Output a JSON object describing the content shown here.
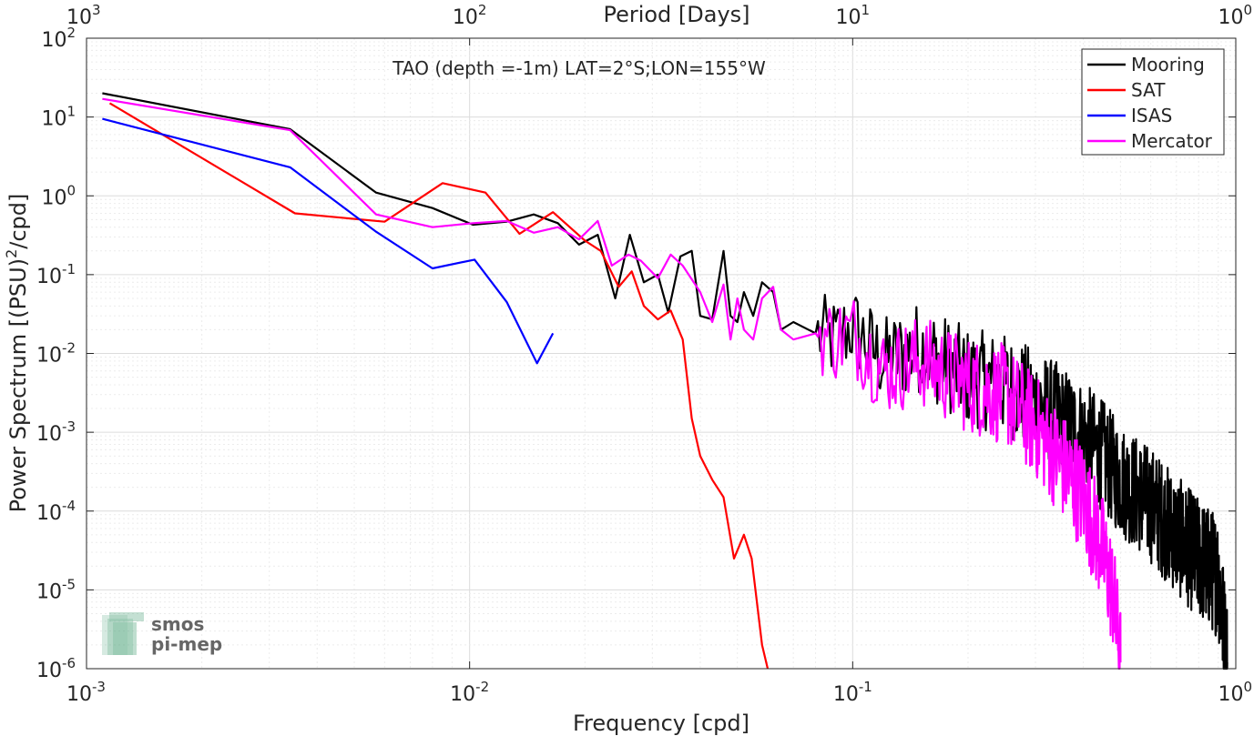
{
  "chart_data": {
    "type": "line",
    "title": "TAO (depth =-1m) LAT=2°S;LON=155°W",
    "xlabel": "Frequency [cpd]",
    "ylabel_main": "Power Spectrum [(PSU)",
    "ylabel_sup": "2",
    "ylabel_tail": "/cpd]",
    "top_xlabel": "Period [Days]",
    "xscale": "log",
    "yscale": "log",
    "xlim": [
      0.001,
      1
    ],
    "ylim": [
      1e-06,
      100
    ],
    "grid": true,
    "legend_position": "top-right",
    "x_ticks": [
      {
        "value": 0.001,
        "base": "10",
        "exp": "-3"
      },
      {
        "value": 0.01,
        "base": "10",
        "exp": "-2"
      },
      {
        "value": 0.1,
        "base": "10",
        "exp": "-1"
      },
      {
        "value": 1,
        "base": "10",
        "exp": "0"
      }
    ],
    "y_ticks": [
      {
        "value": 1e-06,
        "base": "10",
        "exp": "-6"
      },
      {
        "value": 1e-05,
        "base": "10",
        "exp": "-5"
      },
      {
        "value": 0.0001,
        "base": "10",
        "exp": "-4"
      },
      {
        "value": 0.001,
        "base": "10",
        "exp": "-3"
      },
      {
        "value": 0.01,
        "base": "10",
        "exp": "-2"
      },
      {
        "value": 0.1,
        "base": "10",
        "exp": "-1"
      },
      {
        "value": 1,
        "base": "10",
        "exp": "0"
      },
      {
        "value": 10,
        "base": "10",
        "exp": "1"
      },
      {
        "value": 100,
        "base": "10",
        "exp": "2"
      }
    ],
    "top_ticks": [
      {
        "value": 0.001,
        "base": "10",
        "exp": "3"
      },
      {
        "value": 0.01,
        "base": "10",
        "exp": "2"
      },
      {
        "value": 0.1,
        "base": "10",
        "exp": "1"
      },
      {
        "value": 1,
        "base": "10",
        "exp": "0"
      }
    ],
    "series": [
      {
        "name": "Mooring",
        "color": "#000000",
        "mode": "noisy",
        "anchors": [
          [
            0.0011,
            20
          ],
          [
            0.0034,
            7
          ],
          [
            0.0057,
            1.1
          ],
          [
            0.008,
            0.7
          ],
          [
            0.0102,
            0.43
          ],
          [
            0.0125,
            0.47
          ],
          [
            0.0147,
            0.58
          ],
          [
            0.017,
            0.45
          ],
          [
            0.0193,
            0.24
          ],
          [
            0.0216,
            0.32
          ],
          [
            0.024,
            0.05
          ],
          [
            0.0262,
            0.32
          ],
          [
            0.0285,
            0.08
          ],
          [
            0.031,
            0.1
          ],
          [
            0.033,
            0.033
          ],
          [
            0.0355,
            0.17
          ],
          [
            0.038,
            0.2
          ],
          [
            0.04,
            0.03
          ],
          [
            0.043,
            0.027
          ],
          [
            0.046,
            0.2
          ],
          [
            0.048,
            0.03
          ],
          [
            0.05,
            0.025
          ],
          [
            0.052,
            0.06
          ],
          [
            0.055,
            0.03
          ],
          [
            0.058,
            0.08
          ],
          [
            0.062,
            0.06
          ],
          [
            0.065,
            0.02
          ],
          [
            0.07,
            0.025
          ],
          [
            0.08,
            0.018
          ],
          [
            0.09,
            0.015
          ],
          [
            0.1,
            0.022
          ],
          [
            0.12,
            0.008
          ],
          [
            0.15,
            0.012
          ],
          [
            0.2,
            0.005
          ],
          [
            0.25,
            0.004
          ],
          [
            0.3,
            0.0025
          ],
          [
            0.35,
            0.0015
          ],
          [
            0.4,
            0.0009
          ],
          [
            0.45,
            0.0005
          ],
          [
            0.5,
            0.00025
          ],
          [
            0.6,
            0.00012
          ],
          [
            0.7,
            5e-05
          ],
          [
            0.8,
            2.5e-05
          ],
          [
            0.9,
            1.5e-05
          ],
          [
            0.95,
            1.2e-06
          ]
        ]
      },
      {
        "name": "SAT",
        "color": "#ff0000",
        "mode": "smooth",
        "anchors": [
          [
            0.00115,
            15
          ],
          [
            0.0035,
            0.6
          ],
          [
            0.006,
            0.47
          ],
          [
            0.0085,
            1.45
          ],
          [
            0.011,
            1.1
          ],
          [
            0.0135,
            0.33
          ],
          [
            0.0165,
            0.62
          ],
          [
            0.02,
            0.27
          ],
          [
            0.022,
            0.2
          ],
          [
            0.0245,
            0.07
          ],
          [
            0.0265,
            0.11
          ],
          [
            0.0285,
            0.04
          ],
          [
            0.031,
            0.027
          ],
          [
            0.0335,
            0.035
          ],
          [
            0.036,
            0.015
          ],
          [
            0.038,
            0.0015
          ],
          [
            0.04,
            0.0005
          ],
          [
            0.043,
            0.00025
          ],
          [
            0.046,
            0.00015
          ],
          [
            0.049,
            2.5e-05
          ],
          [
            0.052,
            5e-05
          ],
          [
            0.0545,
            2.5e-05
          ],
          [
            0.058,
            2e-06
          ],
          [
            0.06,
            1e-06
          ]
        ]
      },
      {
        "name": "ISAS",
        "color": "#0000ff",
        "mode": "smooth",
        "anchors": [
          [
            0.0011,
            9.5
          ],
          [
            0.0034,
            2.3
          ],
          [
            0.0057,
            0.35
          ],
          [
            0.008,
            0.12
          ],
          [
            0.0103,
            0.155
          ],
          [
            0.0125,
            0.045
          ],
          [
            0.015,
            0.0075
          ],
          [
            0.0165,
            0.018
          ]
        ]
      },
      {
        "name": "Mercator",
        "color": "#ff00ff",
        "mode": "noisy",
        "anchors": [
          [
            0.0011,
            17
          ],
          [
            0.0034,
            6.8
          ],
          [
            0.0057,
            0.58
          ],
          [
            0.008,
            0.4
          ],
          [
            0.0102,
            0.45
          ],
          [
            0.0125,
            0.48
          ],
          [
            0.0147,
            0.34
          ],
          [
            0.017,
            0.4
          ],
          [
            0.0193,
            0.28
          ],
          [
            0.0216,
            0.48
          ],
          [
            0.0235,
            0.13
          ],
          [
            0.026,
            0.18
          ],
          [
            0.028,
            0.15
          ],
          [
            0.031,
            0.09
          ],
          [
            0.0335,
            0.18
          ],
          [
            0.036,
            0.13
          ],
          [
            0.04,
            0.06
          ],
          [
            0.043,
            0.025
          ],
          [
            0.046,
            0.075
          ],
          [
            0.048,
            0.015
          ],
          [
            0.05,
            0.05
          ],
          [
            0.052,
            0.02
          ],
          [
            0.055,
            0.015
          ],
          [
            0.058,
            0.05
          ],
          [
            0.062,
            0.07
          ],
          [
            0.065,
            0.02
          ],
          [
            0.07,
            0.015
          ],
          [
            0.08,
            0.018
          ],
          [
            0.09,
            0.015
          ],
          [
            0.1,
            0.018
          ],
          [
            0.12,
            0.006
          ],
          [
            0.15,
            0.008
          ],
          [
            0.2,
            0.004
          ],
          [
            0.25,
            0.003
          ],
          [
            0.3,
            0.0012
          ],
          [
            0.35,
            0.0004
          ],
          [
            0.4,
            0.00015
          ],
          [
            0.45,
            3e-05
          ],
          [
            0.48,
            8e-06
          ],
          [
            0.5,
            1.2e-06
          ]
        ]
      }
    ]
  },
  "watermark": {
    "line1": "smos",
    "line2": "pi-mep",
    "color": "#3d9a6e"
  }
}
